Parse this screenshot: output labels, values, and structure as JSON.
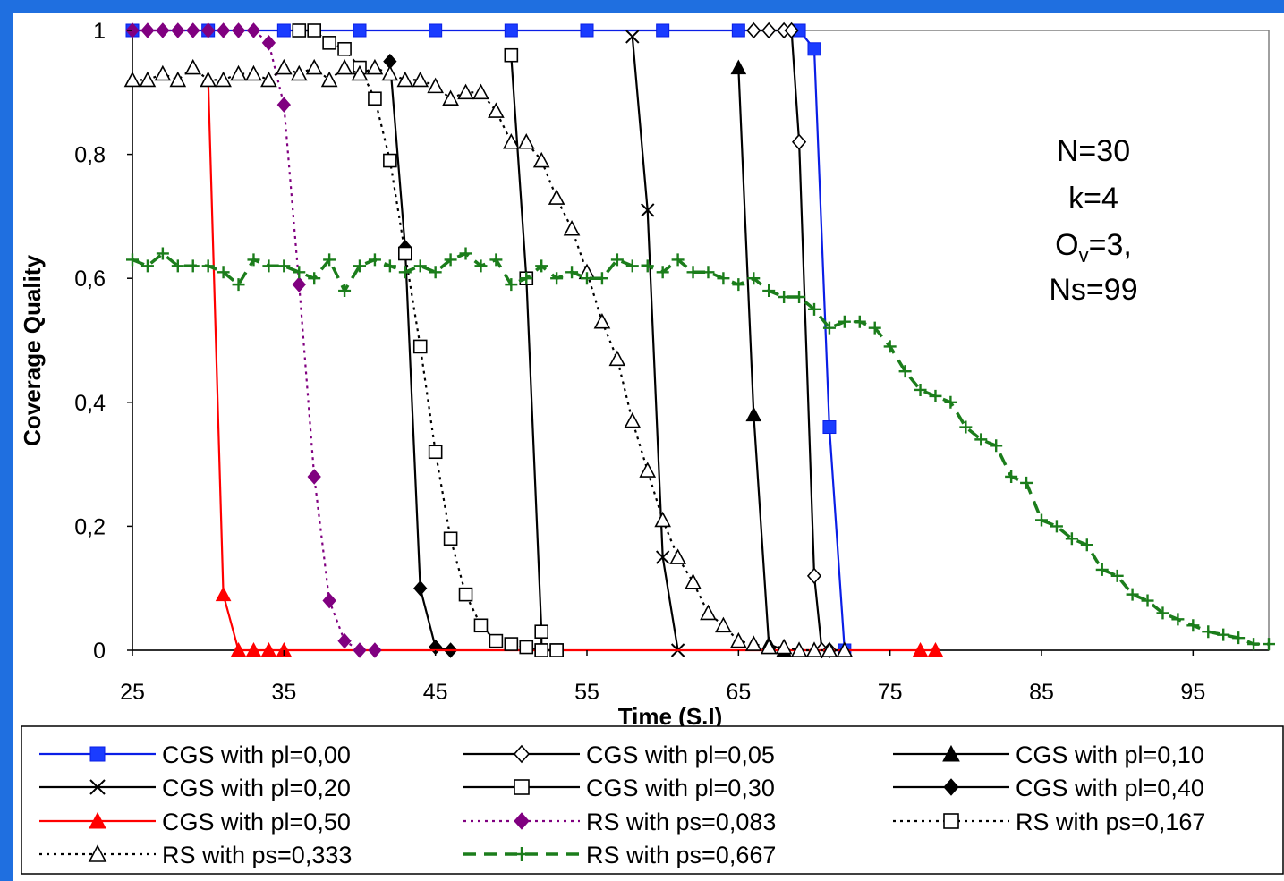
{
  "colors": {
    "background": "#1f6fe0",
    "plot_bg": "#ffffff"
  },
  "chart_data": {
    "type": "line",
    "xlabel": "Time (S.I)",
    "ylabel": "Coverage Quality",
    "xlim": [
      25,
      100
    ],
    "ylim": [
      0,
      1
    ],
    "xticks": [
      "25",
      "35",
      "45",
      "55",
      "65",
      "75",
      "85",
      "95"
    ],
    "yticks": [
      "0",
      "0,2",
      "0,4",
      "0,6",
      "0,8",
      "1"
    ],
    "annotation": {
      "line1": "N=30",
      "line2": "k=4",
      "line3_main": "O",
      "line3_sub": "v",
      "line3_rest": "=3,",
      "line4": "Ns=99"
    },
    "legend_position": "bottom",
    "series": [
      {
        "name": "CGS with pl=0,00",
        "color": "#0a1ee6",
        "dash": "solid",
        "marker": "square",
        "markerFill": "#1a3cff",
        "points": [
          [
            25,
            1
          ],
          [
            30,
            1
          ],
          [
            35,
            1
          ],
          [
            40,
            1
          ],
          [
            45,
            1
          ],
          [
            50,
            1
          ],
          [
            55,
            1
          ],
          [
            60,
            1
          ],
          [
            65,
            1
          ],
          [
            69,
            1
          ],
          [
            70,
            0.97
          ],
          [
            71,
            0.36
          ],
          [
            72,
            0
          ]
        ]
      },
      {
        "name": "CGS with pl=0,05",
        "color": "#000000",
        "dash": "solid",
        "marker": "diamond-open",
        "markerFill": "#ffffff",
        "points": [
          [
            66,
            1
          ],
          [
            67,
            1
          ],
          [
            68,
            1
          ],
          [
            68.5,
            1
          ],
          [
            69,
            0.82
          ],
          [
            70,
            0.12
          ],
          [
            70.5,
            0
          ],
          [
            71,
            0
          ]
        ]
      },
      {
        "name": "CGS with pl=0,10",
        "color": "#000000",
        "dash": "solid",
        "marker": "triangle",
        "markerFill": "#000000",
        "points": [
          [
            65,
            0.94
          ],
          [
            66,
            0.38
          ],
          [
            67,
            0.01
          ],
          [
            68,
            0
          ]
        ]
      },
      {
        "name": "CGS with pl=0,20",
        "color": "#000000",
        "dash": "solid",
        "marker": "x",
        "markerFill": "#000000",
        "points": [
          [
            58,
            0.99
          ],
          [
            59,
            0.71
          ],
          [
            60,
            0.15
          ],
          [
            61,
            0
          ]
        ]
      },
      {
        "name": "CGS with pl=0,30",
        "color": "#000000",
        "dash": "solid",
        "marker": "square-open",
        "markerFill": "#ffffff",
        "points": [
          [
            50,
            0.96
          ],
          [
            51,
            0.6
          ],
          [
            52,
            0.03
          ],
          [
            52,
            0
          ],
          [
            53,
            0
          ]
        ]
      },
      {
        "name": "CGS with pl=0,40",
        "color": "#000000",
        "dash": "solid",
        "marker": "diamond",
        "markerFill": "#000000",
        "points": [
          [
            42,
            0.95
          ],
          [
            43,
            0.65
          ],
          [
            44,
            0.1
          ],
          [
            45,
            0.005
          ],
          [
            46,
            0
          ]
        ]
      },
      {
        "name": "CGS with pl=0,50",
        "color": "#ff0000",
        "dash": "solid",
        "marker": "triangle",
        "markerFill": "#ff0000",
        "points": [
          [
            30,
            0.92
          ],
          [
            31,
            0.09
          ],
          [
            32,
            0
          ],
          [
            33,
            0
          ],
          [
            34,
            0
          ],
          [
            35,
            0
          ],
          [
            77,
            0
          ],
          [
            78,
            0
          ]
        ]
      },
      {
        "name": "RS with ps=0,083",
        "color": "#800080",
        "dash": "dot",
        "marker": "diamond",
        "markerFill": "#800080",
        "points": [
          [
            25,
            1
          ],
          [
            26,
            1
          ],
          [
            27,
            1
          ],
          [
            28,
            1
          ],
          [
            29,
            1
          ],
          [
            30,
            1
          ],
          [
            31,
            1
          ],
          [
            32,
            1
          ],
          [
            33,
            1
          ],
          [
            34,
            0.98
          ],
          [
            35,
            0.88
          ],
          [
            36,
            0.59
          ],
          [
            37,
            0.28
          ],
          [
            38,
            0.08
          ],
          [
            39,
            0.015
          ],
          [
            40,
            0
          ],
          [
            41,
            0
          ]
        ]
      },
      {
        "name": "RS with ps=0,167",
        "color": "#000000",
        "dash": "dot",
        "marker": "square-open",
        "markerFill": "#ffffff",
        "points": [
          [
            36,
            1
          ],
          [
            37,
            1
          ],
          [
            38,
            0.98
          ],
          [
            39,
            0.97
          ],
          [
            40,
            0.94
          ],
          [
            41,
            0.89
          ],
          [
            42,
            0.79
          ],
          [
            43,
            0.64
          ],
          [
            44,
            0.49
          ],
          [
            45,
            0.32
          ],
          [
            46,
            0.18
          ],
          [
            47,
            0.09
          ],
          [
            48,
            0.04
          ],
          [
            49,
            0.015
          ],
          [
            50,
            0.01
          ],
          [
            51,
            0.005
          ],
          [
            52,
            0
          ],
          [
            53,
            0
          ]
        ]
      },
      {
        "name": "RS with ps=0,333",
        "color": "#000000",
        "dash": "dot",
        "marker": "triangle-open",
        "markerFill": "#ffffff",
        "points": [
          [
            25,
            0.92
          ],
          [
            26,
            0.92
          ],
          [
            27,
            0.93
          ],
          [
            28,
            0.92
          ],
          [
            29,
            0.94
          ],
          [
            30,
            0.92
          ],
          [
            31,
            0.92
          ],
          [
            32,
            0.93
          ],
          [
            33,
            0.93
          ],
          [
            34,
            0.92
          ],
          [
            35,
            0.94
          ],
          [
            36,
            0.93
          ],
          [
            37,
            0.94
          ],
          [
            38,
            0.92
          ],
          [
            39,
            0.94
          ],
          [
            40,
            0.93
          ],
          [
            41,
            0.94
          ],
          [
            42,
            0.93
          ],
          [
            43,
            0.92
          ],
          [
            44,
            0.92
          ],
          [
            45,
            0.91
          ],
          [
            46,
            0.89
          ],
          [
            47,
            0.9
          ],
          [
            48,
            0.9
          ],
          [
            49,
            0.87
          ],
          [
            50,
            0.82
          ],
          [
            51,
            0.82
          ],
          [
            52,
            0.79
          ],
          [
            53,
            0.73
          ],
          [
            54,
            0.68
          ],
          [
            55,
            0.61
          ],
          [
            56,
            0.53
          ],
          [
            57,
            0.47
          ],
          [
            58,
            0.37
          ],
          [
            59,
            0.29
          ],
          [
            60,
            0.21
          ],
          [
            61,
            0.15
          ],
          [
            62,
            0.11
          ],
          [
            63,
            0.06
          ],
          [
            64,
            0.04
          ],
          [
            65,
            0.015
          ],
          [
            66,
            0.01
          ],
          [
            67,
            0.005
          ],
          [
            68,
            0.005
          ],
          [
            69,
            0
          ],
          [
            70,
            0
          ],
          [
            71,
            0
          ],
          [
            72,
            0
          ]
        ]
      },
      {
        "name": "RS with ps=0,667",
        "color": "#1b7d1b",
        "dash": "dash",
        "marker": "plus",
        "markerFill": "#1b7d1b",
        "points": [
          [
            25,
            0.63
          ],
          [
            26,
            0.62
          ],
          [
            27,
            0.64
          ],
          [
            28,
            0.62
          ],
          [
            29,
            0.62
          ],
          [
            30,
            0.62
          ],
          [
            31,
            0.61
          ],
          [
            32,
            0.59
          ],
          [
            33,
            0.63
          ],
          [
            34,
            0.62
          ],
          [
            35,
            0.62
          ],
          [
            36,
            0.61
          ],
          [
            37,
            0.6
          ],
          [
            38,
            0.63
          ],
          [
            39,
            0.58
          ],
          [
            40,
            0.62
          ],
          [
            41,
            0.63
          ],
          [
            42,
            0.62
          ],
          [
            43,
            0.61
          ],
          [
            44,
            0.62
          ],
          [
            45,
            0.61
          ],
          [
            46,
            0.63
          ],
          [
            47,
            0.64
          ],
          [
            48,
            0.62
          ],
          [
            49,
            0.63
          ],
          [
            50,
            0.59
          ],
          [
            51,
            0.6
          ],
          [
            52,
            0.62
          ],
          [
            53,
            0.6
          ],
          [
            54,
            0.61
          ],
          [
            55,
            0.6
          ],
          [
            56,
            0.6
          ],
          [
            57,
            0.63
          ],
          [
            58,
            0.62
          ],
          [
            59,
            0.62
          ],
          [
            60,
            0.61
          ],
          [
            61,
            0.63
          ],
          [
            62,
            0.61
          ],
          [
            63,
            0.61
          ],
          [
            64,
            0.6
          ],
          [
            65,
            0.59
          ],
          [
            66,
            0.6
          ],
          [
            67,
            0.58
          ],
          [
            68,
            0.57
          ],
          [
            69,
            0.57
          ],
          [
            70,
            0.55
          ],
          [
            71,
            0.52
          ],
          [
            72,
            0.53
          ],
          [
            73,
            0.53
          ],
          [
            74,
            0.52
          ],
          [
            75,
            0.49
          ],
          [
            76,
            0.45
          ],
          [
            77,
            0.42
          ],
          [
            78,
            0.41
          ],
          [
            79,
            0.4
          ],
          [
            80,
            0.36
          ],
          [
            81,
            0.34
          ],
          [
            82,
            0.33
          ],
          [
            83,
            0.28
          ],
          [
            84,
            0.27
          ],
          [
            85,
            0.21
          ],
          [
            86,
            0.2
          ],
          [
            87,
            0.18
          ],
          [
            88,
            0.17
          ],
          [
            89,
            0.13
          ],
          [
            90,
            0.12
          ],
          [
            91,
            0.09
          ],
          [
            92,
            0.08
          ],
          [
            93,
            0.06
          ],
          [
            94,
            0.05
          ],
          [
            95,
            0.04
          ],
          [
            96,
            0.03
          ],
          [
            97,
            0.025
          ],
          [
            98,
            0.02
          ],
          [
            99,
            0.01
          ],
          [
            100,
            0.01
          ]
        ]
      }
    ]
  }
}
